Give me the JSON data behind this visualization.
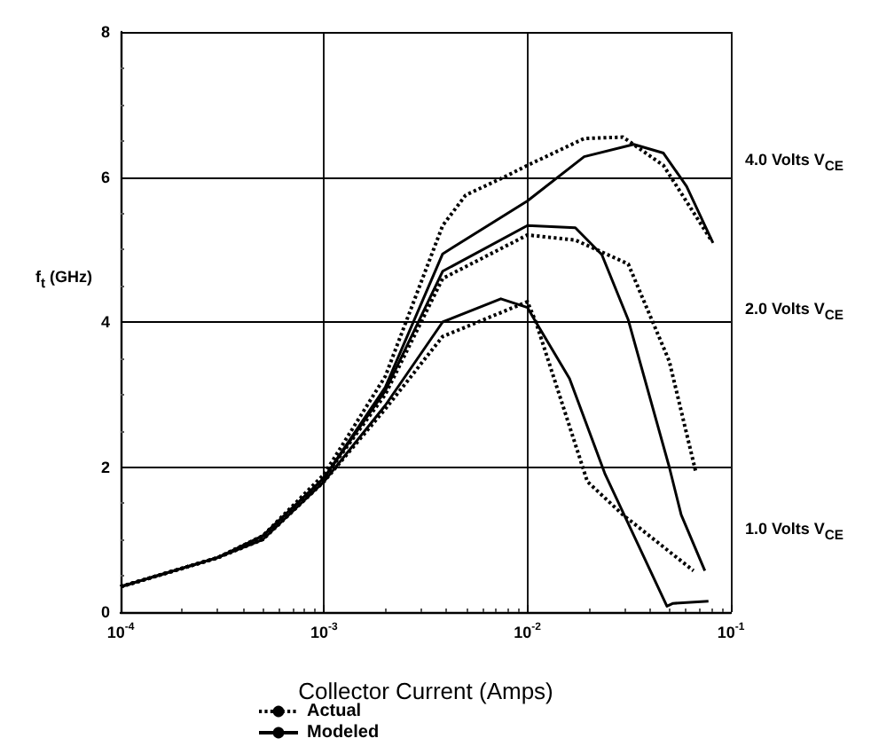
{
  "chart_data": {
    "type": "line",
    "xlabel": "Collector Current (Amps)",
    "ylabel": "f$_{t}$ (GHz)",
    "log": "x",
    "xlim": [
      0.0001,
      0.1
    ],
    "xticks": [
      {
        "value": 0.0001,
        "label": "10$^{-4}$"
      },
      {
        "value": 0.001,
        "label": "10$^{-3}$"
      },
      {
        "value": 0.01,
        "label": "10$^{-2}$"
      },
      {
        "value": 0.1,
        "label": "10$^{-1}$"
      }
    ],
    "ylim": [
      0,
      8
    ],
    "yticks": [
      0,
      2,
      4,
      6,
      8
    ],
    "grid": true,
    "legend": "bottom",
    "marker": "none",
    "annotations": [
      "4.0 Volts V$_{CE}$",
      "2.0 Volts V$_{CE}$",
      "1.0 Volts V$_{CE}$"
    ],
    "series": [
      {
        "name": "Actual",
        "color": "#000000",
        "line_style": "dotted",
        "x": [
          0.0001,
          0.0003,
          0.0005,
          0.001,
          0.002,
          0.00383,
          0.00497,
          0.0077,
          0.01,
          0.019,
          0.0295,
          0.0466,
          0.08
        ],
        "values": [
          0.35,
          0.75,
          1.05,
          1.9,
          3.25,
          5.33,
          5.75,
          6.0,
          6.16,
          6.53,
          6.55,
          6.16,
          5.13
        ]
      },
      {
        "name": "Modeled",
        "color": "#000000",
        "line_style": "solid",
        "x": [
          0.0001,
          0.0003,
          0.0005,
          0.001,
          0.002,
          0.00383,
          0.01,
          0.019,
          0.0333,
          0.0466,
          0.0606,
          0.0817
        ],
        "values": [
          0.35,
          0.75,
          1.05,
          1.85,
          3.1,
          4.94,
          5.67,
          6.28,
          6.45,
          6.33,
          5.87,
          5.09
        ]
      },
      {
        "color": "#000000",
        "line_style": "dotted",
        "x": [
          0.0001,
          0.0003,
          0.0005,
          0.001,
          0.002,
          0.00383,
          0.01,
          0.0172,
          0.0313,
          0.0498,
          0.067
        ],
        "values": [
          0.35,
          0.75,
          1.05,
          1.85,
          3.0,
          4.6,
          5.2,
          5.13,
          4.8,
          3.46,
          1.95
        ]
      },
      {
        "color": "#000000",
        "line_style": "solid",
        "x": [
          0.0001,
          0.0003,
          0.0005,
          0.001,
          0.002,
          0.00383,
          0.01,
          0.0172,
          0.0232,
          0.0313,
          0.0498,
          0.057,
          0.0745
        ],
        "values": [
          0.35,
          0.75,
          1.05,
          1.85,
          3.05,
          4.7,
          5.33,
          5.3,
          4.93,
          4.03,
          2.0,
          1.34,
          0.57
        ]
      },
      {
        "color": "#000000",
        "line_style": "dotted",
        "x": [
          0.0001,
          0.0003,
          0.0005,
          0.001,
          0.002,
          0.00383,
          0.01,
          0.011,
          0.0197,
          0.0295,
          0.0655
        ],
        "values": [
          0.35,
          0.75,
          1.0,
          1.8,
          2.8,
          3.8,
          4.28,
          4.0,
          1.8,
          1.34,
          0.57
        ]
      },
      {
        "color": "#000000",
        "line_style": "solid",
        "x": [
          0.0001,
          0.0003,
          0.0005,
          0.001,
          0.002,
          0.00383,
          0.0074,
          0.01,
          0.011,
          0.0161,
          0.0241,
          0.0485,
          0.052,
          0.0776
        ],
        "values": [
          0.35,
          0.75,
          1.0,
          1.8,
          2.85,
          4.0,
          4.32,
          4.2,
          4.0,
          3.22,
          1.9,
          0.08,
          0.12,
          0.15
        ]
      }
    ]
  }
}
